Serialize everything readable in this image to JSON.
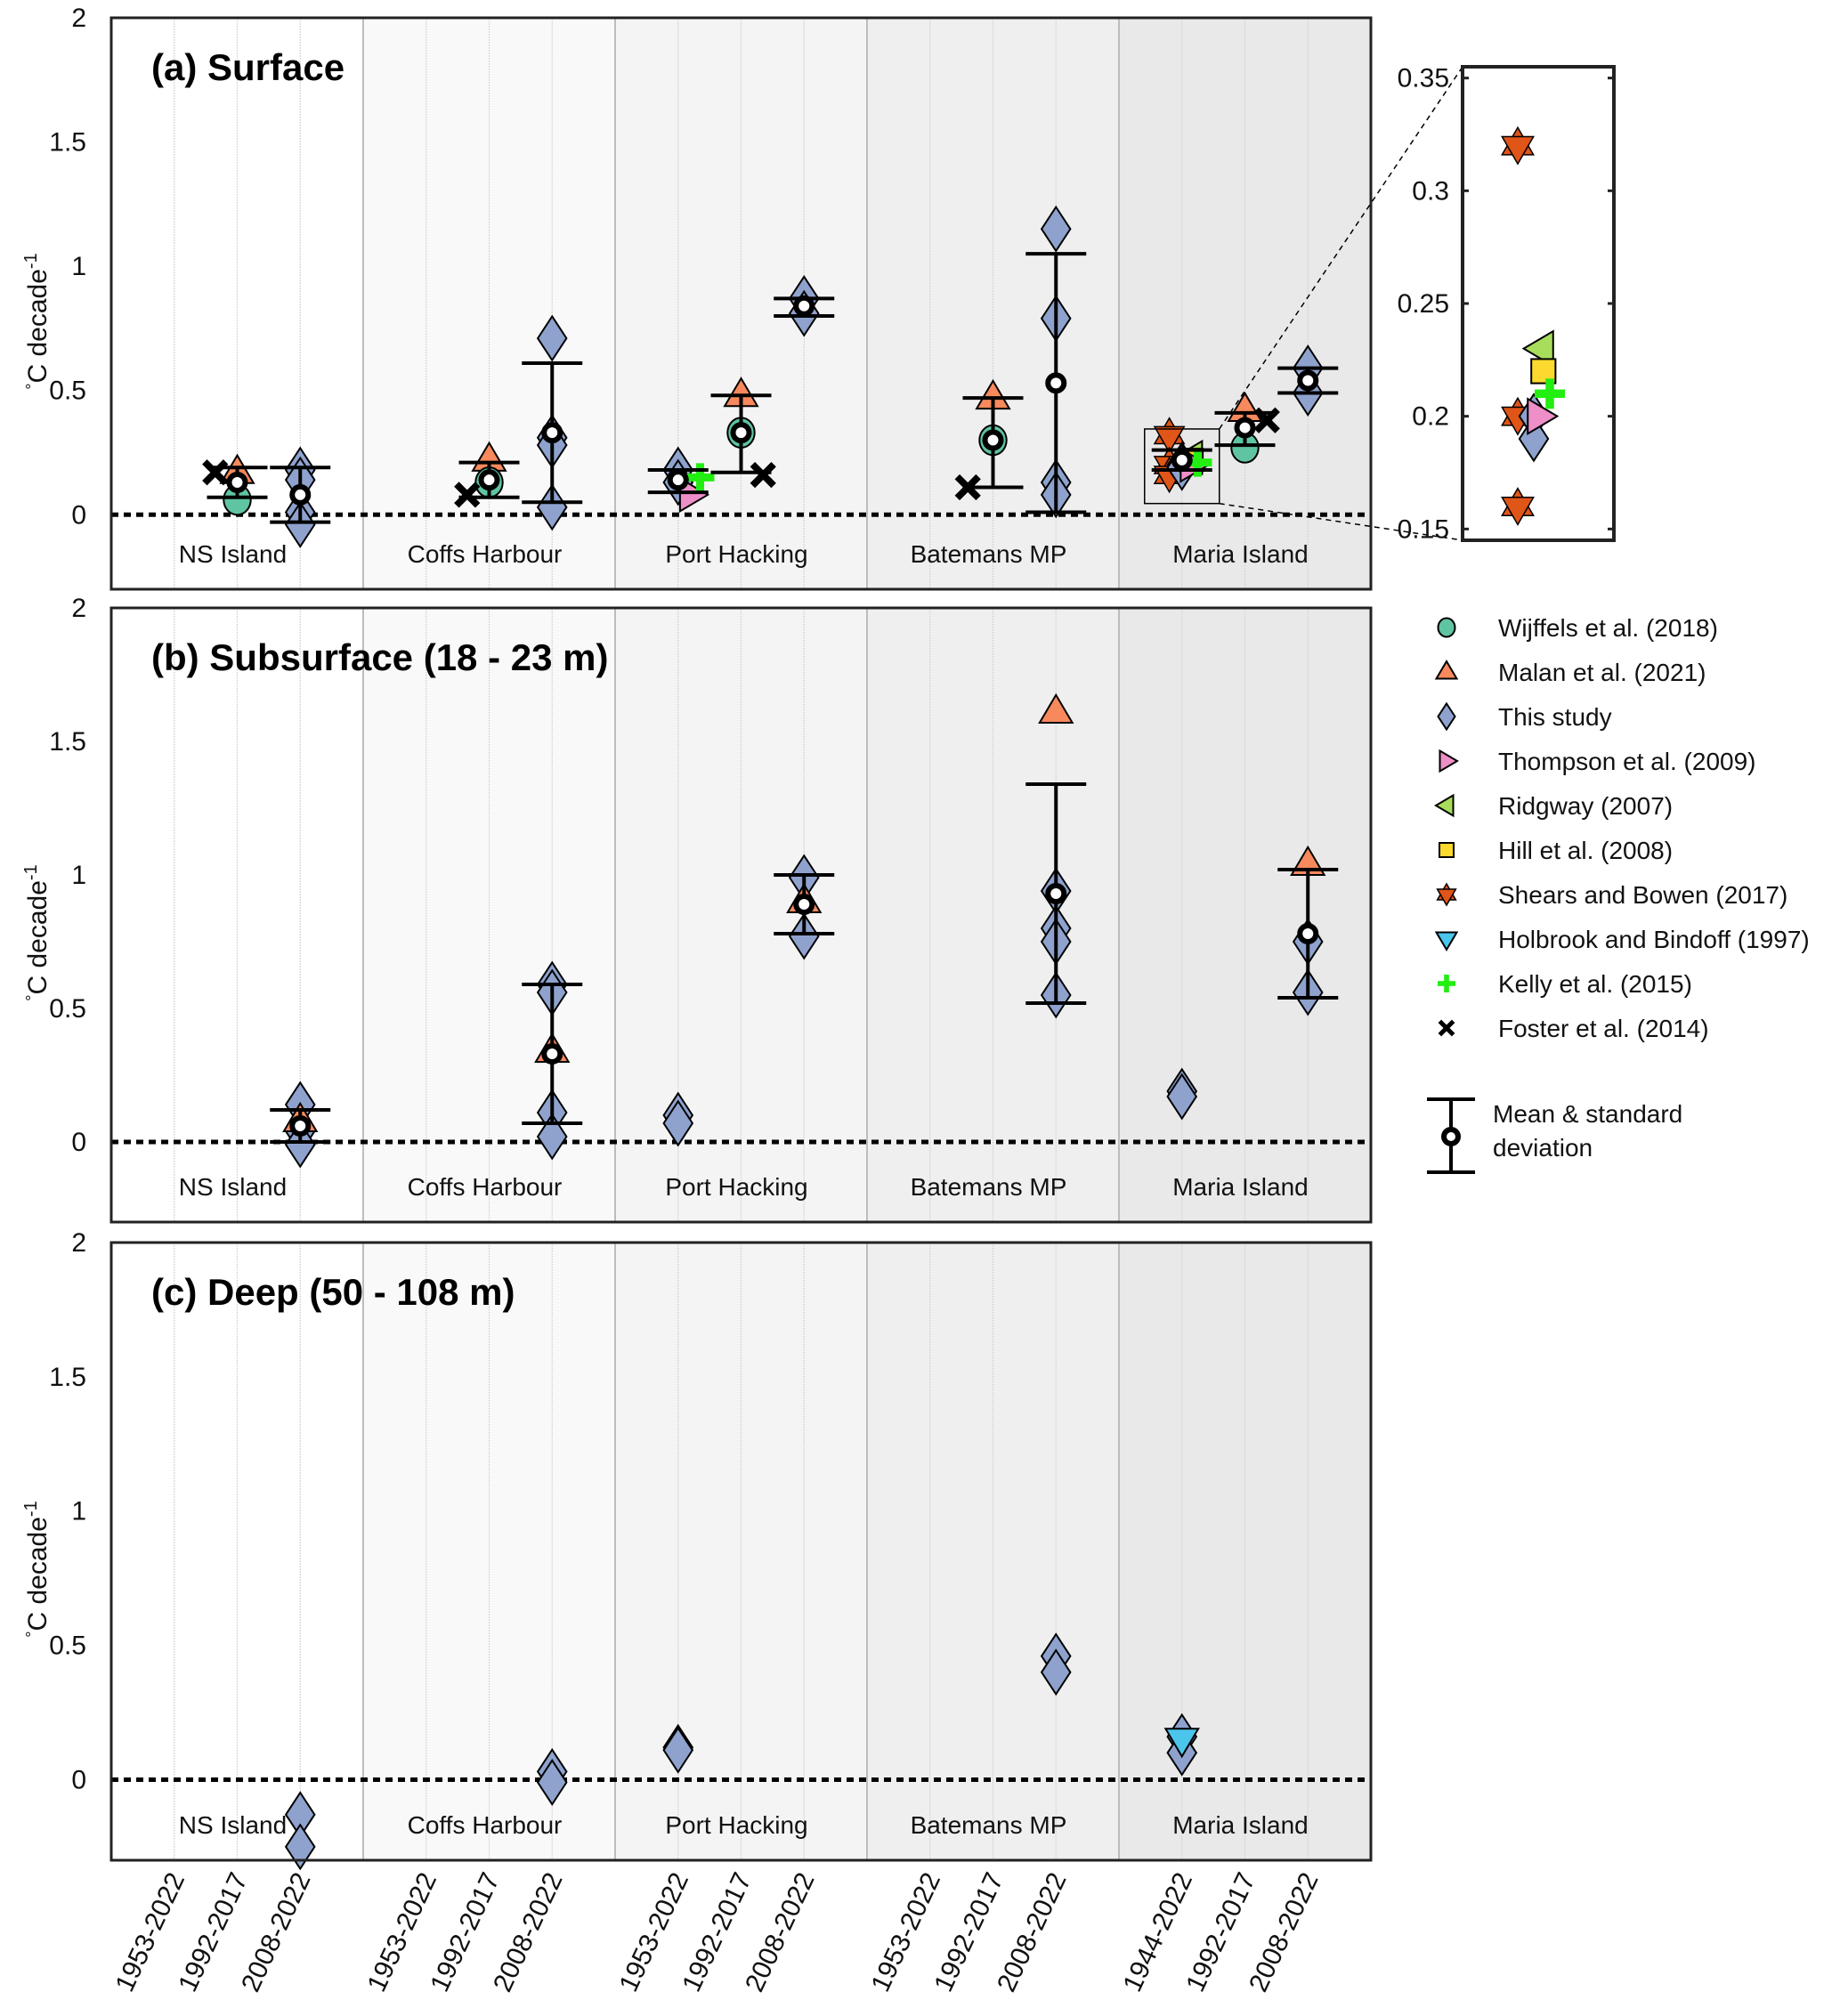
{
  "chart_data": {
    "type": "scatter",
    "ylabel": "°C decade",
    "ylabel_superscript": "-1",
    "ylim": [
      -0.3,
      2
    ],
    "yticks": [
      "0",
      "0.5",
      "1",
      "1.5",
      "2"
    ],
    "ytick_values": [
      0,
      0.5,
      1,
      1.5,
      2
    ],
    "zero_line": "dotted",
    "sites": [
      "NS Island",
      "Coffs Harbour",
      "Port Hacking",
      "Batemans MP",
      "Maria Island"
    ],
    "site_shading": [
      "#ffffff",
      "#f9f9f9",
      "#f4f4f4",
      "#efefef",
      "#e9e9e9"
    ],
    "periods": [
      [
        "1953-2022",
        "1992-2017",
        "2008-2022"
      ],
      [
        "1953-2022",
        "1992-2017",
        "2008-2022"
      ],
      [
        "1953-2022",
        "1992-2017",
        "2008-2022"
      ],
      [
        "1953-2022",
        "1992-2017",
        "2008-2022"
      ],
      [
        "1944-2022",
        "1992-2017",
        "2008-2022"
      ]
    ],
    "series_styles": {
      "wijffels": {
        "label": "Wijffels et al. (2018)",
        "marker": "circle",
        "color": "#5fc4a2"
      },
      "malan": {
        "label": "Malan et al. (2021)",
        "marker": "triangle-up",
        "color": "#f7895c"
      },
      "this": {
        "label": "This study",
        "marker": "diamond",
        "color": "#8ea2cd"
      },
      "thompson": {
        "label": "Thompson et al. (2009)",
        "marker": "triangle-right",
        "color": "#ee8fc8"
      },
      "ridgway": {
        "label": "Ridgway (2007)",
        "marker": "triangle-left",
        "color": "#a8dd5c"
      },
      "hill": {
        "label": "Hill et al. (2008)",
        "marker": "square",
        "color": "#fbd92f"
      },
      "shears": {
        "label": "Shears and Bowen (2017)",
        "marker": "hexagram",
        "color": "#e05518"
      },
      "holbrook": {
        "label": "Holbrook and Bindoff (1997)",
        "marker": "triangle-down",
        "color": "#4cc5ec"
      },
      "kelly": {
        "label": "Kelly et al. (2015)",
        "marker": "plus",
        "color": "#22ee11"
      },
      "foster": {
        "label": "Foster et al. (2014)",
        "marker": "x",
        "color": "#000000"
      }
    },
    "legend_order": [
      "wijffels",
      "malan",
      "this",
      "thompson",
      "ridgway",
      "hill",
      "shears",
      "holbrook",
      "kelly",
      "foster"
    ],
    "legend_placement": "right",
    "mean_sd_label_line1": "Mean & standard",
    "mean_sd_label_line2": "deviation",
    "panels": [
      {
        "id": "a",
        "title": "(a) Surface",
        "points": [
          {
            "site": 0,
            "period": 1,
            "series": "foster",
            "y": 0.17,
            "dx": -0.35
          },
          {
            "site": 0,
            "period": 1,
            "series": "malan",
            "y": 0.17
          },
          {
            "site": 0,
            "period": 1,
            "series": "wijffels",
            "y": 0.06
          },
          {
            "site": 0,
            "period": 2,
            "series": "this",
            "y": 0.18
          },
          {
            "site": 0,
            "period": 2,
            "series": "this",
            "y": 0.14
          },
          {
            "site": 0,
            "period": 2,
            "series": "this",
            "y": 0.01
          },
          {
            "site": 0,
            "period": 2,
            "series": "this",
            "y": -0.04
          },
          {
            "site": 1,
            "period": 1,
            "series": "foster",
            "y": 0.08,
            "dx": -0.35
          },
          {
            "site": 1,
            "period": 1,
            "series": "malan",
            "y": 0.22
          },
          {
            "site": 1,
            "period": 1,
            "series": "wijffels",
            "y": 0.13
          },
          {
            "site": 1,
            "period": 2,
            "series": "this",
            "y": 0.71
          },
          {
            "site": 1,
            "period": 2,
            "series": "this",
            "y": 0.31
          },
          {
            "site": 1,
            "period": 2,
            "series": "this",
            "y": 0.28
          },
          {
            "site": 1,
            "period": 2,
            "series": "this",
            "y": 0.03
          },
          {
            "site": 2,
            "period": 0,
            "series": "this",
            "y": 0.18
          },
          {
            "site": 2,
            "period": 0,
            "series": "this",
            "y": 0.13
          },
          {
            "site": 2,
            "period": 0,
            "series": "thompson",
            "y": 0.08,
            "dx": 0.2
          },
          {
            "site": 2,
            "period": 0,
            "series": "kelly",
            "y": 0.15,
            "dx": 0.35
          },
          {
            "site": 2,
            "period": 1,
            "series": "malan",
            "y": 0.48
          },
          {
            "site": 2,
            "period": 1,
            "series": "wijffels",
            "y": 0.33
          },
          {
            "site": 2,
            "period": 1,
            "series": "foster",
            "y": 0.16,
            "dx": 0.35
          },
          {
            "site": 2,
            "period": 2,
            "series": "this",
            "y": 0.87
          },
          {
            "site": 2,
            "period": 2,
            "series": "this",
            "y": 0.81
          },
          {
            "site": 3,
            "period": 1,
            "series": "malan",
            "y": 0.47
          },
          {
            "site": 3,
            "period": 1,
            "series": "wijffels",
            "y": 0.3
          },
          {
            "site": 3,
            "period": 1,
            "series": "foster",
            "y": 0.11,
            "dx": -0.4
          },
          {
            "site": 3,
            "period": 2,
            "series": "this",
            "y": 1.15
          },
          {
            "site": 3,
            "period": 2,
            "series": "this",
            "y": 0.79
          },
          {
            "site": 3,
            "period": 2,
            "series": "this",
            "y": 0.13
          },
          {
            "site": 3,
            "period": 2,
            "series": "this",
            "y": 0.08
          },
          {
            "site": 4,
            "period": 0,
            "series": "shears",
            "y": 0.32,
            "dx": -0.2
          },
          {
            "site": 4,
            "period": 0,
            "series": "shears",
            "y": 0.2,
            "dx": -0.2
          },
          {
            "site": 4,
            "period": 0,
            "series": "shears",
            "y": 0.16,
            "dx": -0.2
          },
          {
            "site": 4,
            "period": 0,
            "series": "ridgway",
            "y": 0.23,
            "dx": 0.15
          },
          {
            "site": 4,
            "period": 0,
            "series": "hill",
            "y": 0.22,
            "dx": 0.15
          },
          {
            "site": 4,
            "period": 0,
            "series": "thompson",
            "y": 0.2,
            "dx": 0.15
          },
          {
            "site": 4,
            "period": 0,
            "series": "kelly",
            "y": 0.21,
            "dx": 0.25
          },
          {
            "site": 4,
            "period": 0,
            "series": "this",
            "y": 0.2
          },
          {
            "site": 4,
            "period": 0,
            "series": "this",
            "y": 0.19
          },
          {
            "site": 4,
            "period": 1,
            "series": "malan",
            "y": 0.42
          },
          {
            "site": 4,
            "period": 1,
            "series": "wijffels",
            "y": 0.27
          },
          {
            "site": 4,
            "period": 1,
            "series": "foster",
            "y": 0.38,
            "dx": 0.35
          },
          {
            "site": 4,
            "period": 2,
            "series": "this",
            "y": 0.59
          },
          {
            "site": 4,
            "period": 2,
            "series": "this",
            "y": 0.49
          }
        ],
        "means": [
          {
            "site": 0,
            "period": 1,
            "mean": 0.13,
            "lo": 0.07,
            "hi": 0.19
          },
          {
            "site": 0,
            "period": 2,
            "mean": 0.08,
            "lo": -0.03,
            "hi": 0.19
          },
          {
            "site": 1,
            "period": 1,
            "mean": 0.14,
            "lo": 0.07,
            "hi": 0.21
          },
          {
            "site": 1,
            "period": 2,
            "mean": 0.33,
            "lo": 0.05,
            "hi": 0.61
          },
          {
            "site": 2,
            "period": 0,
            "mean": 0.14,
            "lo": 0.09,
            "hi": 0.18
          },
          {
            "site": 2,
            "period": 1,
            "mean": 0.33,
            "lo": 0.17,
            "hi": 0.48
          },
          {
            "site": 2,
            "period": 2,
            "mean": 0.84,
            "lo": 0.8,
            "hi": 0.87
          },
          {
            "site": 3,
            "period": 1,
            "mean": 0.3,
            "lo": 0.11,
            "hi": 0.47
          },
          {
            "site": 3,
            "period": 2,
            "mean": 0.53,
            "lo": 0.01,
            "hi": 1.05
          },
          {
            "site": 4,
            "period": 0,
            "mean": 0.22,
            "lo": 0.18,
            "hi": 0.26
          },
          {
            "site": 4,
            "period": 1,
            "mean": 0.35,
            "lo": 0.28,
            "hi": 0.41
          },
          {
            "site": 4,
            "period": 2,
            "mean": 0.54,
            "lo": 0.49,
            "hi": 0.59
          }
        ],
        "inset": {
          "ylim": [
            0.145,
            0.355
          ],
          "yticks": [
            "0.15",
            "0.2",
            "0.25",
            "0.3",
            "0.35"
          ],
          "ytick_values": [
            0.15,
            0.2,
            0.25,
            0.3,
            0.35
          ],
          "source_site": 4,
          "source_period": 0,
          "points": [
            {
              "series": "shears",
              "y": 0.32,
              "dx": -0.3
            },
            {
              "series": "shears",
              "y": 0.2,
              "dx": -0.3
            },
            {
              "series": "shears",
              "y": 0.16,
              "dx": -0.3
            },
            {
              "series": "ridgway",
              "y": 0.23,
              "dx": 0.15
            },
            {
              "series": "hill",
              "y": 0.22,
              "dx": 0.18
            },
            {
              "series": "thompson",
              "y": 0.2,
              "dx": 0.1
            },
            {
              "series": "this",
              "y": 0.2,
              "dx": 0.0
            },
            {
              "series": "this",
              "y": 0.19,
              "dx": 0.0
            },
            {
              "series": "kelly",
              "y": 0.21,
              "dx": 0.3
            }
          ]
        }
      },
      {
        "id": "b",
        "title": "(b) Subsurface (18 - 23 m)",
        "points": [
          {
            "site": 0,
            "period": 2,
            "series": "this",
            "y": 0.14
          },
          {
            "site": 0,
            "period": 2,
            "series": "malan",
            "y": 0.08
          },
          {
            "site": 0,
            "period": 2,
            "series": "this",
            "y": 0.04
          },
          {
            "site": 0,
            "period": 2,
            "series": "this",
            "y": -0.01
          },
          {
            "site": 1,
            "period": 2,
            "series": "this",
            "y": 0.59
          },
          {
            "site": 1,
            "period": 2,
            "series": "this",
            "y": 0.56
          },
          {
            "site": 1,
            "period": 2,
            "series": "malan",
            "y": 0.34
          },
          {
            "site": 1,
            "period": 2,
            "series": "this",
            "y": 0.11
          },
          {
            "site": 1,
            "period": 2,
            "series": "this",
            "y": 0.02
          },
          {
            "site": 2,
            "period": 0,
            "series": "this",
            "y": 0.1
          },
          {
            "site": 2,
            "period": 0,
            "series": "this",
            "y": 0.07
          },
          {
            "site": 2,
            "period": 2,
            "series": "this",
            "y": 0.99
          },
          {
            "site": 2,
            "period": 2,
            "series": "malan",
            "y": 0.9
          },
          {
            "site": 2,
            "period": 2,
            "series": "this",
            "y": 0.77
          },
          {
            "site": 3,
            "period": 2,
            "series": "malan",
            "y": 1.61
          },
          {
            "site": 3,
            "period": 2,
            "series": "this",
            "y": 0.94
          },
          {
            "site": 3,
            "period": 2,
            "series": "this",
            "y": 0.8
          },
          {
            "site": 3,
            "period": 2,
            "series": "this",
            "y": 0.75
          },
          {
            "site": 3,
            "period": 2,
            "series": "this",
            "y": 0.55
          },
          {
            "site": 4,
            "period": 0,
            "series": "this",
            "y": 0.19
          },
          {
            "site": 4,
            "period": 0,
            "series": "this",
            "y": 0.17
          },
          {
            "site": 4,
            "period": 2,
            "series": "malan",
            "y": 1.04
          },
          {
            "site": 4,
            "period": 2,
            "series": "this",
            "y": 0.75
          },
          {
            "site": 4,
            "period": 2,
            "series": "this",
            "y": 0.56
          }
        ],
        "means": [
          {
            "site": 0,
            "period": 2,
            "mean": 0.06,
            "lo": 0.0,
            "hi": 0.12
          },
          {
            "site": 1,
            "period": 2,
            "mean": 0.33,
            "lo": 0.07,
            "hi": 0.59
          },
          {
            "site": 2,
            "period": 2,
            "mean": 0.89,
            "lo": 0.78,
            "hi": 1.0
          },
          {
            "site": 3,
            "period": 2,
            "mean": 0.93,
            "lo": 0.52,
            "hi": 1.34
          },
          {
            "site": 4,
            "period": 2,
            "mean": 0.78,
            "lo": 0.54,
            "hi": 1.02
          }
        ]
      },
      {
        "id": "c",
        "title": "(c) Deep (50 - 108 m)",
        "points": [
          {
            "site": 0,
            "period": 2,
            "series": "this",
            "y": -0.13
          },
          {
            "site": 0,
            "period": 2,
            "series": "this",
            "y": -0.25
          },
          {
            "site": 1,
            "period": 2,
            "series": "this",
            "y": 0.03
          },
          {
            "site": 1,
            "period": 2,
            "series": "this",
            "y": -0.01
          },
          {
            "site": 2,
            "period": 0,
            "series": "this",
            "y": 0.12
          },
          {
            "site": 2,
            "period": 0,
            "series": "this",
            "y": 0.11
          },
          {
            "site": 3,
            "period": 2,
            "series": "this",
            "y": 0.46
          },
          {
            "site": 3,
            "period": 2,
            "series": "this",
            "y": 0.4
          },
          {
            "site": 4,
            "period": 0,
            "series": "this",
            "y": 0.16
          },
          {
            "site": 4,
            "period": 0,
            "series": "this",
            "y": 0.1
          },
          {
            "site": 4,
            "period": 0,
            "series": "holbrook",
            "y": 0.15
          }
        ],
        "means": []
      }
    ]
  }
}
